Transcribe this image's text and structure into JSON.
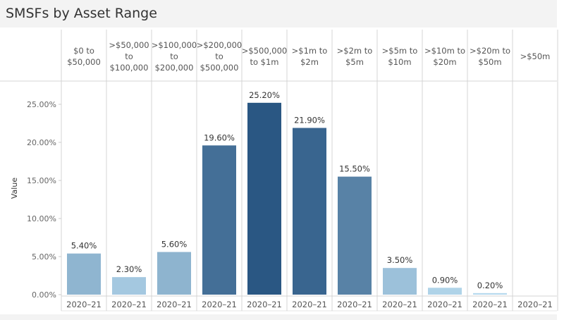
{
  "chart_data": {
    "type": "bar",
    "title": "SMSFs by Asset Range",
    "ylabel": "Value",
    "xlabel": "",
    "ylim": [
      0,
      28
    ],
    "yticks": [
      0,
      5,
      10,
      15,
      20,
      25
    ],
    "ytick_labels": [
      "0.00%",
      "5.00%",
      "10.00%",
      "15.00%",
      "20.00%",
      "25.00%"
    ],
    "categories": [
      [
        "$0 to",
        "$50,000"
      ],
      [
        ">$50,000",
        "to",
        "$100,000"
      ],
      [
        ">$100,000",
        "to",
        "$200,000"
      ],
      [
        ">$200,000",
        "to",
        "$500,000"
      ],
      [
        ">$500,000",
        "to $1m"
      ],
      [
        ">$1m to",
        "$2m"
      ],
      [
        ">$2m to",
        "$5m"
      ],
      [
        ">$5m to",
        "$10m"
      ],
      [
        ">$10m to",
        "$20m"
      ],
      [
        ">$20m to",
        "$50m"
      ],
      [
        ">$50m"
      ]
    ],
    "sub_category": "2020–21",
    "values": [
      5.4,
      2.3,
      5.6,
      19.6,
      25.2,
      21.9,
      15.5,
      3.5,
      0.9,
      0.2,
      null
    ],
    "data_labels": [
      "5.40%",
      "2.30%",
      "5.60%",
      "19.60%",
      "25.20%",
      "21.90%",
      "15.50%",
      "3.50%",
      "0.90%",
      "0.20%",
      ""
    ],
    "color_scale": [
      "#b9dcf0",
      "#2a5783"
    ],
    "grid": false
  }
}
